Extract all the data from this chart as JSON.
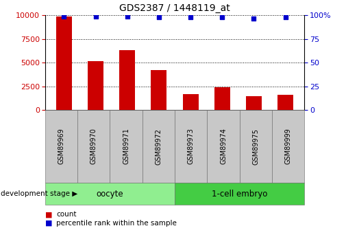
{
  "title": "GDS2387 / 1448119_at",
  "samples": [
    "GSM89969",
    "GSM89970",
    "GSM89971",
    "GSM89972",
    "GSM89973",
    "GSM89974",
    "GSM89975",
    "GSM89999"
  ],
  "counts": [
    9900,
    5200,
    6300,
    4200,
    1700,
    2400,
    1500,
    1600
  ],
  "percentiles": [
    99,
    99,
    99,
    98,
    98,
    98,
    97,
    98
  ],
  "bar_color": "#cc0000",
  "dot_color": "#0000cc",
  "ylim_left": [
    0,
    10000
  ],
  "ylim_right": [
    0,
    100
  ],
  "yticks_left": [
    0,
    2500,
    5000,
    7500,
    10000
  ],
  "yticks_right": [
    0,
    25,
    50,
    75,
    100
  ],
  "groups": [
    {
      "label": "oocyte",
      "samples_count": 4,
      "color": "#90ee90"
    },
    {
      "label": "1-cell embryo",
      "samples_count": 4,
      "color": "#44cc44"
    }
  ],
  "dev_stage_label": "development stage",
  "legend_count_label": "count",
  "legend_pct_label": "percentile rank within the sample",
  "sample_box_color": "#c8c8c8",
  "title_fontsize": 10,
  "tick_fontsize": 8,
  "label_fontsize": 8,
  "group_fontsize": 8.5
}
